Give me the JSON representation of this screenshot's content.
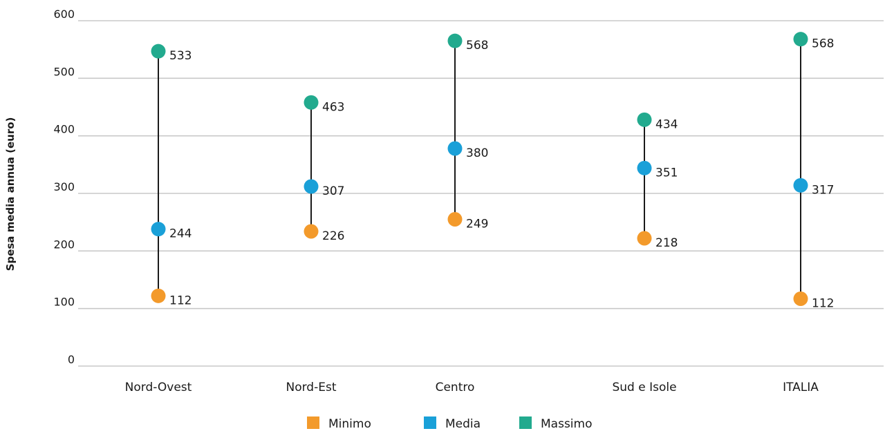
{
  "chart_data": {
    "type": "scatter",
    "subtype": "dumbbell",
    "title": "",
    "xlabel": "",
    "ylabel": "Spesa media annua (euro)",
    "ylim": [
      0,
      600
    ],
    "yticks": [
      0,
      100,
      200,
      300,
      400,
      500,
      600
    ],
    "grid": true,
    "legend_position": "bottom-center",
    "categories": [
      "Nord-Ovest",
      "Nord-Est",
      "Centro",
      "Sud e Isole",
      "ITALIA"
    ],
    "series": [
      {
        "name": "Minimo",
        "color": "#F39A2B",
        "values": [
          112,
          226,
          249,
          218,
          112
        ],
        "plot_values": [
          122,
          234,
          255,
          222,
          117
        ]
      },
      {
        "name": "Media",
        "color": "#1AA0D8",
        "values": [
          244,
          307,
          380,
          351,
          317
        ],
        "plot_values": [
          238,
          312,
          378,
          344,
          314
        ]
      },
      {
        "name": "Massimo",
        "color": "#22AA8E",
        "values": [
          533,
          463,
          568,
          434,
          568
        ],
        "plot_values": [
          547,
          458,
          565,
          428,
          568
        ]
      }
    ],
    "data_labels": true
  }
}
